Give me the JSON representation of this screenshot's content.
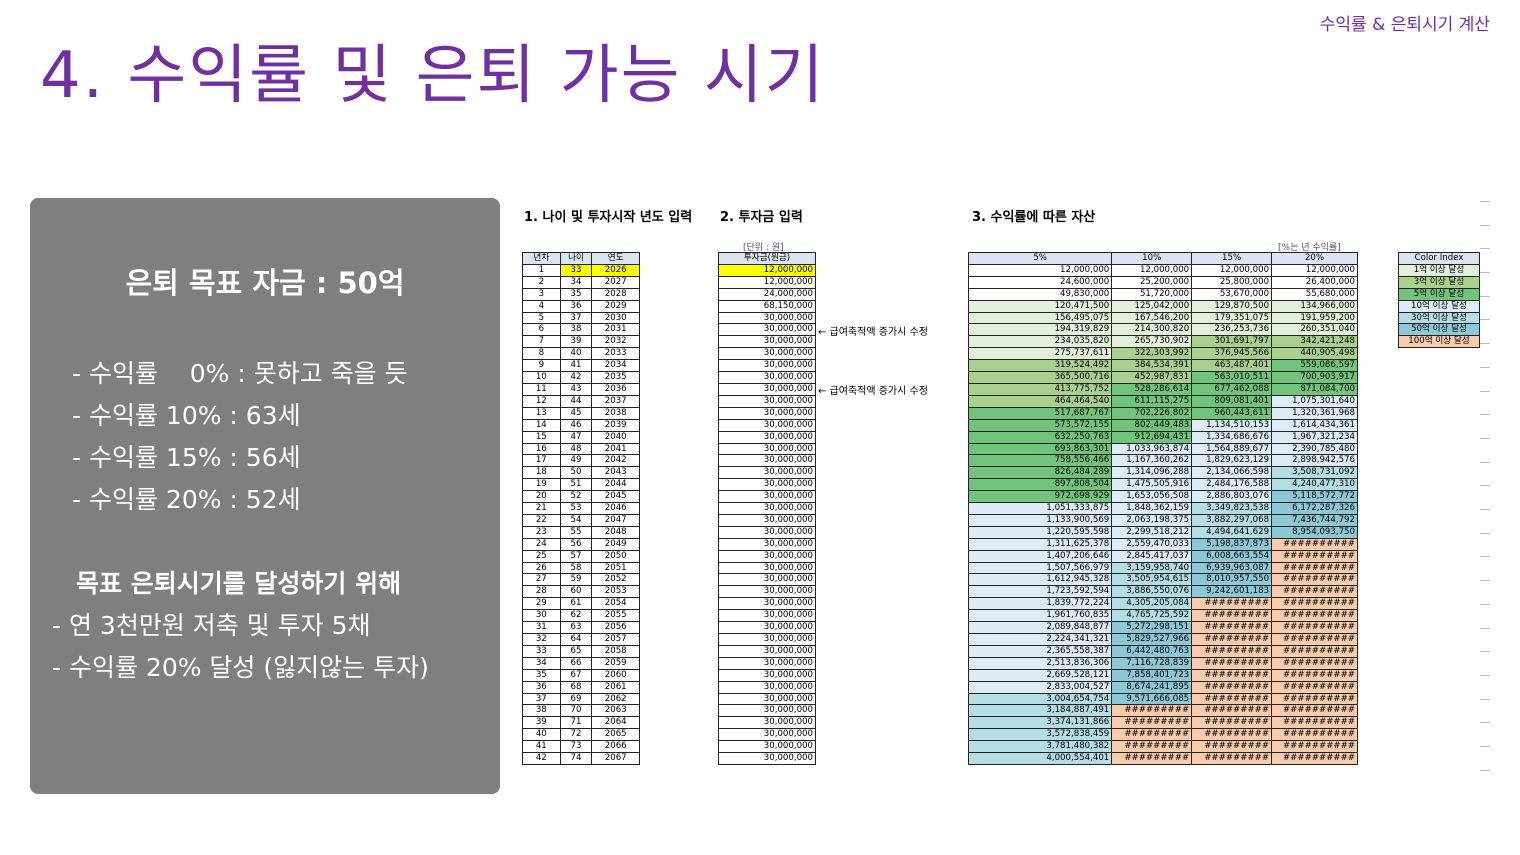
{
  "header": {
    "title": "4. 수익률 및 은퇴 가능 시기",
    "tag": "수익률 & 은퇴시기 계산"
  },
  "panel": {
    "goal": "은퇴 목표 자금 : 50억",
    "rates": [
      "- 수익률    0% : 못하고 죽을 듯",
      "- 수익률 10% : 63세",
      "- 수익률 15% : 56세",
      "- 수익률 20% : 52세"
    ],
    "subhead": "목표 은퇴시기를 달성하기 위해",
    "plans": [
      "- 연 3천만원 저축 및 투자 5채",
      "- 수익률 20% 달성 (잃지않는 투자)"
    ]
  },
  "sections": {
    "s1": "1. 나이 및 투자시작 년도 입력",
    "s2": "2. 투자금 입력",
    "s3": "3. 수익률에 따른 자산"
  },
  "units": {
    "invest": "[단위 : 원]",
    "rate": "[%는 년 수익률]"
  },
  "headers": {
    "t1": [
      "년차",
      "나이",
      "연도"
    ],
    "t2": [
      "투자금(원금)"
    ],
    "t3": [
      "5%",
      "10%",
      "15%",
      "20%"
    ],
    "t4": [
      "Color Index"
    ]
  },
  "notes": [
    "← 급여축적액 증가시 수정",
    "← 급여축적액 증가시 수정"
  ],
  "colors": {
    "accent": "#7030a0",
    "yellow": "#ffff00",
    "c1": "#e2efda",
    "c3": "#a9d08e",
    "c5": "#70c47c",
    "c10": "#ddebf7",
    "c30": "#b4dde4",
    "c50": "#8cc8d6",
    "c100": "#f8cbad"
  },
  "color_index": [
    {
      "label": "1억 이상 달성",
      "color": "#e2efda"
    },
    {
      "label": "3억 이상 달성",
      "color": "#a9d08e"
    },
    {
      "label": "5억 이상 달성",
      "color": "#70c47c"
    },
    {
      "label": "10억 이상 달성",
      "color": "#ddebf7"
    },
    {
      "label": "30억 이상 달성",
      "color": "#b4dde4"
    },
    {
      "label": "50억 이상 달성",
      "color": "#8cc8d6"
    },
    {
      "label": "100억 이상 달성",
      "color": "#f8cbad"
    }
  ],
  "rows": [
    [
      "1",
      "33",
      "2026",
      "12,000,000",
      "12,000,000",
      "12,000,000",
      "12,000,000",
      "12,000,000"
    ],
    [
      "2",
      "34",
      "2027",
      "12,000,000",
      "24,600,000",
      "25,200,000",
      "25,800,000",
      "26,400,000"
    ],
    [
      "3",
      "35",
      "2028",
      "24,000,000",
      "49,830,000",
      "51,720,000",
      "53,670,000",
      "55,680,000"
    ],
    [
      "4",
      "36",
      "2029",
      "68,150,000",
      "120,471,500",
      "125,042,000",
      "129,870,500",
      "134,966,000"
    ],
    [
      "5",
      "37",
      "2030",
      "30,000,000",
      "156,495,075",
      "167,546,200",
      "179,351,075",
      "191,959,200"
    ],
    [
      "6",
      "38",
      "2031",
      "30,000,000",
      "194,319,829",
      "214,300,820",
      "236,253,736",
      "260,351,040"
    ],
    [
      "7",
      "39",
      "2032",
      "30,000,000",
      "234,035,820",
      "265,730,902",
      "301,691,797",
      "342,421,248"
    ],
    [
      "8",
      "40",
      "2033",
      "30,000,000",
      "275,737,611",
      "322,303,992",
      "376,945,566",
      "440,905,498"
    ],
    [
      "9",
      "41",
      "2034",
      "30,000,000",
      "319,524,492",
      "384,534,391",
      "463,487,401",
      "559,086,597"
    ],
    [
      "10",
      "42",
      "2035",
      "30,000,000",
      "365,500,716",
      "452,987,831",
      "563,010,511",
      "700,903,917"
    ],
    [
      "11",
      "43",
      "2036",
      "30,000,000",
      "413,775,752",
      "528,286,614",
      "677,462,088",
      "871,084,700"
    ],
    [
      "12",
      "44",
      "2037",
      "30,000,000",
      "464,464,540",
      "611,115,275",
      "809,081,401",
      "1,075,301,640"
    ],
    [
      "13",
      "45",
      "2038",
      "30,000,000",
      "517,687,767",
      "702,226,802",
      "960,443,611",
      "1,320,361,968"
    ],
    [
      "14",
      "46",
      "2039",
      "30,000,000",
      "573,572,155",
      "802,449,483",
      "1,134,510,153",
      "1,614,434,361"
    ],
    [
      "15",
      "47",
      "2040",
      "30,000,000",
      "632,250,763",
      "912,694,431",
      "1,334,686,676",
      "1,967,321,234"
    ],
    [
      "16",
      "48",
      "2041",
      "30,000,000",
      "693,863,301",
      "1,033,963,874",
      "1,564,889,677",
      "2,390,785,480"
    ],
    [
      "17",
      "49",
      "2042",
      "30,000,000",
      "758,556,466",
      "1,167,360,262",
      "1,829,623,129",
      "2,898,942,576"
    ],
    [
      "18",
      "50",
      "2043",
      "30,000,000",
      "826,484,289",
      "1,314,096,288",
      "2,134,066,598",
      "3,508,731,092"
    ],
    [
      "19",
      "51",
      "2044",
      "30,000,000",
      "897,808,504",
      "1,475,505,916",
      "2,484,176,588",
      "4,240,477,310"
    ],
    [
      "20",
      "52",
      "2045",
      "30,000,000",
      "972,698,929",
      "1,653,056,508",
      "2,886,803,076",
      "5,118,572,772"
    ],
    [
      "21",
      "53",
      "2046",
      "30,000,000",
      "1,051,333,875",
      "1,848,362,159",
      "3,349,823,538",
      "6,172,287,326"
    ],
    [
      "22",
      "54",
      "2047",
      "30,000,000",
      "1,133,900,569",
      "2,063,198,375",
      "3,882,297,068",
      "7,436,744,792"
    ],
    [
      "23",
      "55",
      "2048",
      "30,000,000",
      "1,220,595,598",
      "2,299,518,212",
      "4,494,641,629",
      "8,954,093,750"
    ],
    [
      "24",
      "56",
      "2049",
      "30,000,000",
      "1,311,625,378",
      "2,559,470,033",
      "5,198,837,873",
      "##########"
    ],
    [
      "25",
      "57",
      "2050",
      "30,000,000",
      "1,407,206,646",
      "2,845,417,037",
      "6,008,663,554",
      "##########"
    ],
    [
      "26",
      "58",
      "2051",
      "30,000,000",
      "1,507,566,979",
      "3,159,958,740",
      "6,939,963,087",
      "##########"
    ],
    [
      "27",
      "59",
      "2052",
      "30,000,000",
      "1,612,945,328",
      "3,505,954,615",
      "8,010,957,550",
      "##########"
    ],
    [
      "28",
      "60",
      "2053",
      "30,000,000",
      "1,723,592,594",
      "3,886,550,076",
      "9,242,601,183",
      "##########"
    ],
    [
      "29",
      "61",
      "2054",
      "30,000,000",
      "1,839,772,224",
      "4,305,205,084",
      "#########",
      "##########"
    ],
    [
      "30",
      "62",
      "2055",
      "30,000,000",
      "1,961,760,835",
      "4,765,725,592",
      "#########",
      "##########"
    ],
    [
      "31",
      "63",
      "2056",
      "30,000,000",
      "2,089,848,877",
      "5,272,298,151",
      "#########",
      "##########"
    ],
    [
      "32",
      "64",
      "2057",
      "30,000,000",
      "2,224,341,321",
      "5,829,527,966",
      "#########",
      "##########"
    ],
    [
      "33",
      "65",
      "2058",
      "30,000,000",
      "2,365,558,387",
      "6,442,480,763",
      "#########",
      "##########"
    ],
    [
      "34",
      "66",
      "2059",
      "30,000,000",
      "2,513,836,306",
      "7,116,728,839",
      "#########",
      "##########"
    ],
    [
      "35",
      "67",
      "2060",
      "30,000,000",
      "2,669,528,121",
      "7,858,401,723",
      "#########",
      "##########"
    ],
    [
      "36",
      "68",
      "2061",
      "30,000,000",
      "2,833,004,527",
      "8,674,241,895",
      "#########",
      "##########"
    ],
    [
      "37",
      "69",
      "2062",
      "30,000,000",
      "3,004,654,754",
      "9,571,666,085",
      "#########",
      "##########"
    ],
    [
      "38",
      "70",
      "2063",
      "30,000,000",
      "3,184,887,491",
      "#########",
      "#########",
      "##########"
    ],
    [
      "39",
      "71",
      "2064",
      "30,000,000",
      "3,374,131,866",
      "#########",
      "#########",
      "##########"
    ],
    [
      "40",
      "72",
      "2065",
      "30,000,000",
      "3,572,838,459",
      "#########",
      "#########",
      "##########"
    ],
    [
      "41",
      "73",
      "2066",
      "30,000,000",
      "3,781,480,382",
      "#########",
      "#########",
      "##########"
    ],
    [
      "42",
      "74",
      "2067",
      "30,000,000",
      "4,000,554,401",
      "#########",
      "#########",
      "##########"
    ]
  ]
}
